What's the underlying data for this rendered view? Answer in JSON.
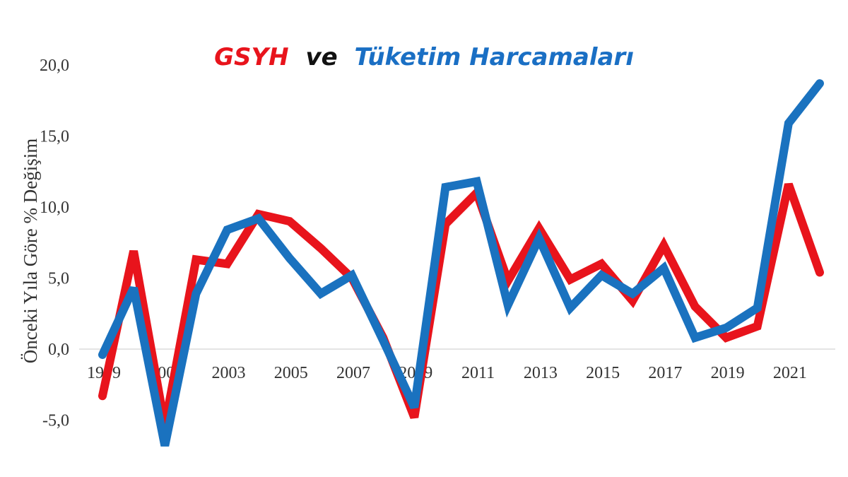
{
  "chart_data": {
    "type": "line",
    "title": {
      "parts": [
        {
          "text": "GSYH",
          "color": "#e8141c"
        },
        {
          "text": "ve",
          "color": "#111111"
        },
        {
          "text": "Tüketim Harcamaları",
          "color": "#1a6fc4"
        }
      ]
    },
    "ylabel": "Önceki Yıla Göre % Değişim",
    "xlabel": "",
    "ylim": [
      -7,
      21
    ],
    "y_ticks": [
      "20,0",
      "15,0",
      "10,0",
      "5,0",
      "0,0",
      "-5,0"
    ],
    "y_tick_values": [
      20,
      15,
      10,
      5,
      0,
      -5
    ],
    "x_tick_labels": [
      "1999",
      "2001",
      "2003",
      "2005",
      "2007",
      "2009",
      "2011",
      "2013",
      "2015",
      "2017",
      "2019",
      "2021"
    ],
    "x_tick_years": [
      1999,
      2001,
      2003,
      2005,
      2007,
      2009,
      2011,
      2013,
      2015,
      2017,
      2019,
      2021
    ],
    "x": [
      1999,
      2000,
      2001,
      2002,
      2003,
      2004,
      2005,
      2006,
      2007,
      2008,
      2009,
      2010,
      2011,
      2012,
      2013,
      2014,
      2015,
      2016,
      2017,
      2018,
      2019,
      2020,
      2021,
      2022
    ],
    "grid": false,
    "series": [
      {
        "color": "#e8141c",
        "values": [
          -3.3,
          6.9,
          -5.4,
          6.3,
          6.0,
          9.5,
          9.0,
          7.1,
          5.0,
          0.8,
          -4.8,
          8.8,
          11.0,
          4.8,
          8.5,
          4.9,
          6.0,
          3.4,
          7.3,
          3.0,
          0.8,
          1.6,
          11.6,
          5.4
        ]
      },
      {
        "color": "#1a72bf",
        "values": [
          -0.4,
          4.3,
          -6.8,
          3.9,
          8.4,
          9.2,
          6.4,
          3.9,
          5.2,
          0.6,
          -4.1,
          11.4,
          11.8,
          3.1,
          7.8,
          2.9,
          5.2,
          3.9,
          5.7,
          0.8,
          1.5,
          2.9,
          15.9,
          18.7
        ]
      }
    ]
  }
}
